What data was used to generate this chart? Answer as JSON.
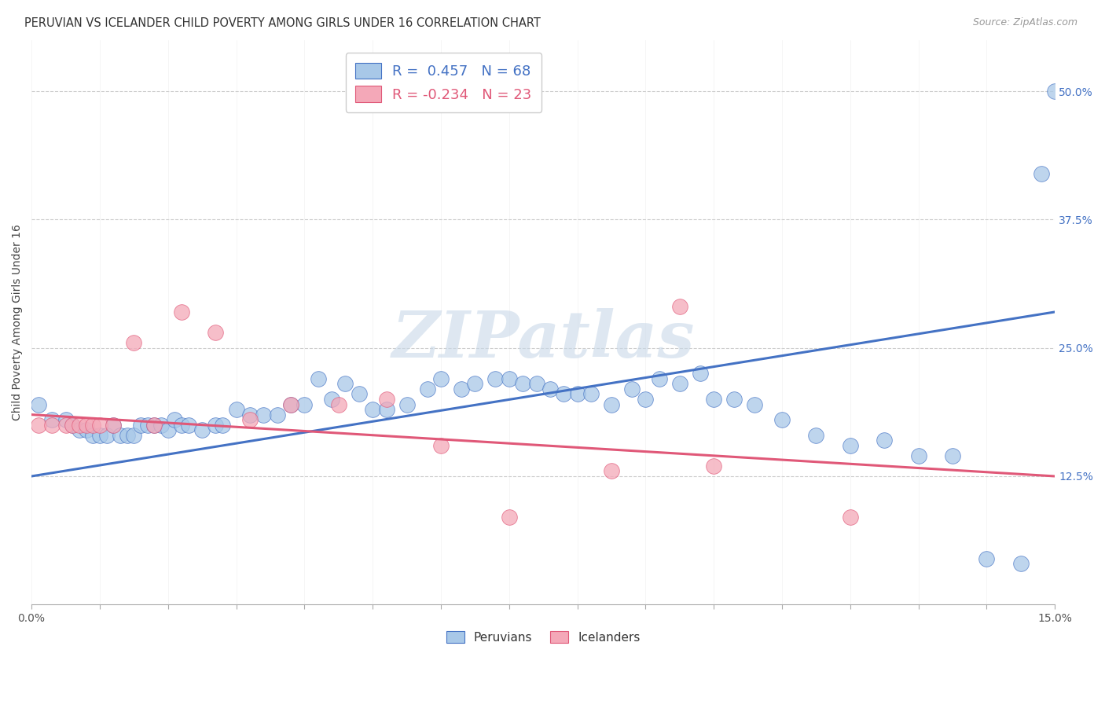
{
  "title": "PERUVIAN VS ICELANDER CHILD POVERTY AMONG GIRLS UNDER 16 CORRELATION CHART",
  "source": "Source: ZipAtlas.com",
  "ylabel": "Child Poverty Among Girls Under 16",
  "xlim": [
    0.0,
    0.15
  ],
  "ylim": [
    0.0,
    0.55
  ],
  "blue_R": "0.457",
  "blue_N": "68",
  "pink_R": "-0.234",
  "pink_N": "23",
  "blue_color": "#A8C8E8",
  "pink_color": "#F4A8B8",
  "blue_line_color": "#4472C4",
  "pink_line_color": "#E05878",
  "ytick_color": "#4472C4",
  "watermark": "ZIPatlas",
  "blue_line_y0": 0.125,
  "blue_line_y1": 0.285,
  "pink_line_y0": 0.185,
  "pink_line_y1": 0.125,
  "blue_scatter_x": [
    0.001,
    0.003,
    0.005,
    0.006,
    0.007,
    0.008,
    0.009,
    0.01,
    0.011,
    0.012,
    0.013,
    0.014,
    0.015,
    0.016,
    0.017,
    0.018,
    0.019,
    0.02,
    0.021,
    0.022,
    0.023,
    0.025,
    0.027,
    0.028,
    0.03,
    0.032,
    0.034,
    0.036,
    0.038,
    0.04,
    0.042,
    0.044,
    0.046,
    0.048,
    0.05,
    0.052,
    0.055,
    0.058,
    0.06,
    0.063,
    0.065,
    0.068,
    0.07,
    0.072,
    0.074,
    0.076,
    0.078,
    0.08,
    0.082,
    0.085,
    0.088,
    0.09,
    0.092,
    0.095,
    0.098,
    0.1,
    0.103,
    0.106,
    0.11,
    0.115,
    0.12,
    0.125,
    0.13,
    0.135,
    0.14,
    0.145,
    0.148,
    0.15
  ],
  "blue_scatter_y": [
    0.195,
    0.18,
    0.18,
    0.175,
    0.17,
    0.17,
    0.165,
    0.165,
    0.165,
    0.175,
    0.165,
    0.165,
    0.165,
    0.175,
    0.175,
    0.175,
    0.175,
    0.17,
    0.18,
    0.175,
    0.175,
    0.17,
    0.175,
    0.175,
    0.19,
    0.185,
    0.185,
    0.185,
    0.195,
    0.195,
    0.22,
    0.2,
    0.215,
    0.205,
    0.19,
    0.19,
    0.195,
    0.21,
    0.22,
    0.21,
    0.215,
    0.22,
    0.22,
    0.215,
    0.215,
    0.21,
    0.205,
    0.205,
    0.205,
    0.195,
    0.21,
    0.2,
    0.22,
    0.215,
    0.225,
    0.2,
    0.2,
    0.195,
    0.18,
    0.165,
    0.155,
    0.16,
    0.145,
    0.145,
    0.045,
    0.04,
    0.42,
    0.5
  ],
  "pink_scatter_x": [
    0.001,
    0.003,
    0.005,
    0.006,
    0.007,
    0.008,
    0.009,
    0.01,
    0.012,
    0.015,
    0.018,
    0.022,
    0.027,
    0.032,
    0.038,
    0.045,
    0.052,
    0.06,
    0.07,
    0.085,
    0.095,
    0.1,
    0.12
  ],
  "pink_scatter_y": [
    0.175,
    0.175,
    0.175,
    0.175,
    0.175,
    0.175,
    0.175,
    0.175,
    0.175,
    0.255,
    0.175,
    0.285,
    0.265,
    0.18,
    0.195,
    0.195,
    0.2,
    0.155,
    0.085,
    0.13,
    0.29,
    0.135,
    0.085
  ]
}
